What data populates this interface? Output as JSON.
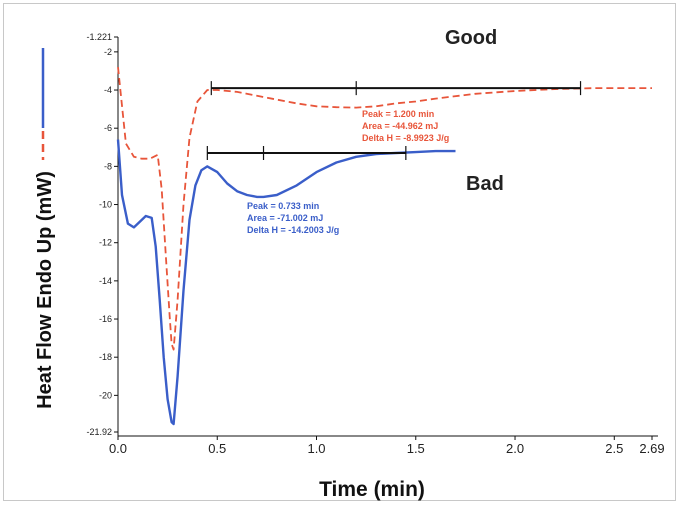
{
  "chart_data": {
    "type": "line",
    "xlabel": "Time (min)",
    "ylabel": "Heat Flow Endo Up (mW)",
    "xlim": [
      0.0,
      2.69
    ],
    "ylim": [
      -21.92,
      -1.221
    ],
    "x_ticks": [
      "0.0",
      "0.5",
      "1.0",
      "1.5",
      "2.0",
      "2.5",
      "2.69"
    ],
    "x_tick_values": [
      0.0,
      0.5,
      1.0,
      1.5,
      2.0,
      2.5,
      2.69
    ],
    "y_ticks": [
      "-1.221",
      "-2",
      "-4",
      "-6",
      "-8",
      "-10",
      "-12",
      "-14",
      "-16",
      "-18",
      "-20",
      "-21.92"
    ],
    "y_tick_values": [
      -1.221,
      -2,
      -4,
      -6,
      -8,
      -10,
      -12,
      -14,
      -16,
      -18,
      -20,
      -21.92
    ],
    "legend_swatches": [
      {
        "color": "#3a5ec9",
        "style": "solid"
      },
      {
        "color": "#e8553a",
        "style": "dashed"
      }
    ],
    "series": [
      {
        "name": "Good",
        "color": "#e8553a",
        "style": "dashed",
        "x": [
          0.0,
          0.04,
          0.08,
          0.12,
          0.16,
          0.2,
          0.22,
          0.24,
          0.26,
          0.27,
          0.28,
          0.3,
          0.33,
          0.36,
          0.4,
          0.45,
          0.5,
          0.6,
          0.7,
          0.8,
          0.9,
          1.0,
          1.1,
          1.2,
          1.3,
          1.4,
          1.5,
          1.6,
          1.8,
          2.0,
          2.2,
          2.4,
          2.6,
          2.69
        ],
        "y": [
          -2.8,
          -6.8,
          -7.5,
          -7.6,
          -7.6,
          -7.4,
          -9.2,
          -12.5,
          -15.8,
          -17.3,
          -17.6,
          -15.0,
          -10.0,
          -6.5,
          -4.6,
          -4.0,
          -4.0,
          -4.1,
          -4.3,
          -4.5,
          -4.7,
          -4.85,
          -4.9,
          -4.92,
          -4.85,
          -4.7,
          -4.6,
          -4.45,
          -4.2,
          -4.05,
          -3.95,
          -3.9,
          -3.9,
          -3.9
        ]
      },
      {
        "name": "Bad",
        "color": "#3a5ec9",
        "style": "solid",
        "x": [
          0.0,
          0.02,
          0.05,
          0.08,
          0.11,
          0.14,
          0.17,
          0.19,
          0.21,
          0.23,
          0.25,
          0.27,
          0.28,
          0.3,
          0.33,
          0.36,
          0.39,
          0.42,
          0.45,
          0.5,
          0.55,
          0.6,
          0.65,
          0.7,
          0.733,
          0.8,
          0.9,
          1.0,
          1.1,
          1.2,
          1.3,
          1.4,
          1.5,
          1.6,
          1.7
        ],
        "y": [
          -6.6,
          -9.5,
          -11.0,
          -11.2,
          -10.9,
          -10.6,
          -10.7,
          -12.2,
          -15.0,
          -18.0,
          -20.2,
          -21.4,
          -21.5,
          -19.0,
          -14.5,
          -10.8,
          -9.0,
          -8.2,
          -8.0,
          -8.3,
          -8.9,
          -9.3,
          -9.5,
          -9.6,
          -9.6,
          -9.5,
          -9.0,
          -8.3,
          -7.8,
          -7.5,
          -7.35,
          -7.3,
          -7.25,
          -7.2,
          -7.2
        ]
      }
    ],
    "baselines": [
      {
        "series": "Good",
        "x_start": 0.47,
        "x_end": 2.33,
        "y": -3.9,
        "tick_x": [
          0.47,
          1.2,
          2.33
        ],
        "color": "#111111"
      },
      {
        "series": "Bad",
        "x_start": 0.45,
        "x_end": 1.45,
        "y": -7.3,
        "tick_x": [
          0.45,
          0.733,
          1.45
        ],
        "color": "#111111"
      }
    ],
    "annotations": [
      {
        "label": "Good",
        "kind": "tag"
      },
      {
        "label": "Bad",
        "kind": "tag"
      },
      {
        "kind": "peak",
        "series": "Good",
        "color": "#e8553a",
        "lines": [
          "Peak = 1.200 min",
          "Area = -44.962 mJ",
          "Delta H = -8.9923 J/g"
        ]
      },
      {
        "kind": "peak",
        "series": "Bad",
        "color": "#3a5ec9",
        "lines": [
          "Peak = 0.733 min",
          "Area = -71.002 mJ",
          "Delta H = -14.2003 J/g"
        ]
      }
    ]
  }
}
